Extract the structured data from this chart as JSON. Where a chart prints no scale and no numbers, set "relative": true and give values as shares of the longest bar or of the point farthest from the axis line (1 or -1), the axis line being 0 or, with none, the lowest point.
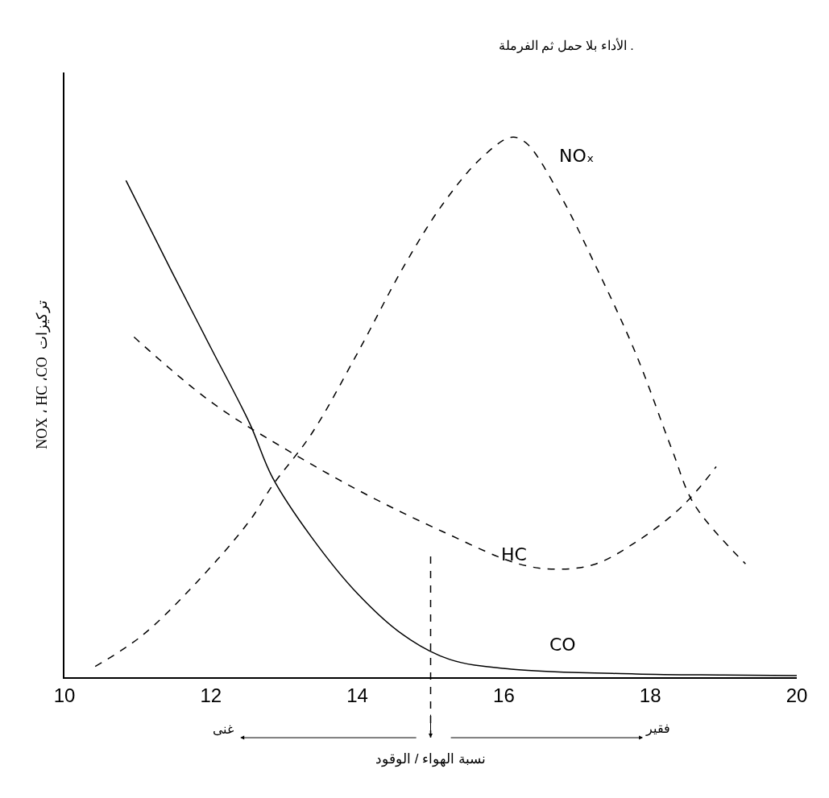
{
  "chart_data": {
    "type": "line",
    "relative": true,
    "xlabel": "نسبة الهواء / الوقود",
    "ylabel": "NOX ، HC ،CO  تركيزات",
    "annotations": [
      "الأداء بلا حمل ثم الفرملة .",
      "غنى",
      "فقير"
    ],
    "xlim": [
      10,
      20
    ],
    "xticks": [
      10,
      12,
      14,
      16,
      18,
      20
    ],
    "grid": false,
    "legend": false,
    "marker": "none",
    "ref_lines": [
      {
        "axis": "x",
        "value": 15,
        "color": "#000000",
        "line_style": "dashed"
      }
    ],
    "series": [
      {
        "name": "CO",
        "color": "#000000",
        "line_style": "solid",
        "x": [
          10.84,
          11.47,
          12,
          12.53,
          12.84,
          13.37,
          14,
          14.63,
          15.26,
          16.1,
          17.8,
          19,
          20
        ],
        "values": [
          0.92,
          0.75,
          0.61,
          0.47,
          0.37,
          0.26,
          0.155,
          0.078,
          0.033,
          0.015,
          0.006,
          0.004,
          0.003
        ]
      },
      {
        "name": "HC",
        "color": "#000000",
        "line_style": "dashed",
        "x": [
          10.95,
          12,
          13.05,
          14.1,
          15.16,
          16.2,
          16.74,
          17.26,
          17.8,
          18.3,
          18.6,
          18.9
        ],
        "values": [
          0.63,
          0.51,
          0.42,
          0.34,
          0.27,
          0.21,
          0.2,
          0.21,
          0.25,
          0.3,
          0.34,
          0.39
        ]
      },
      {
        "name": "NOₓ",
        "color": "#000000",
        "line_style": "dashed",
        "x": [
          10.42,
          11.05,
          11.8,
          12.53,
          12.84,
          13.37,
          14,
          14.63,
          15.16,
          15.68,
          16.1,
          16.3,
          16.74,
          17.26,
          17.8,
          18.3,
          18.6,
          19.3
        ],
        "values": [
          0.02,
          0.076,
          0.175,
          0.29,
          0.355,
          0.45,
          0.6,
          0.76,
          0.875,
          0.96,
          1.0,
          0.99,
          0.9,
          0.76,
          0.6,
          0.42,
          0.32,
          0.21
        ]
      }
    ]
  }
}
